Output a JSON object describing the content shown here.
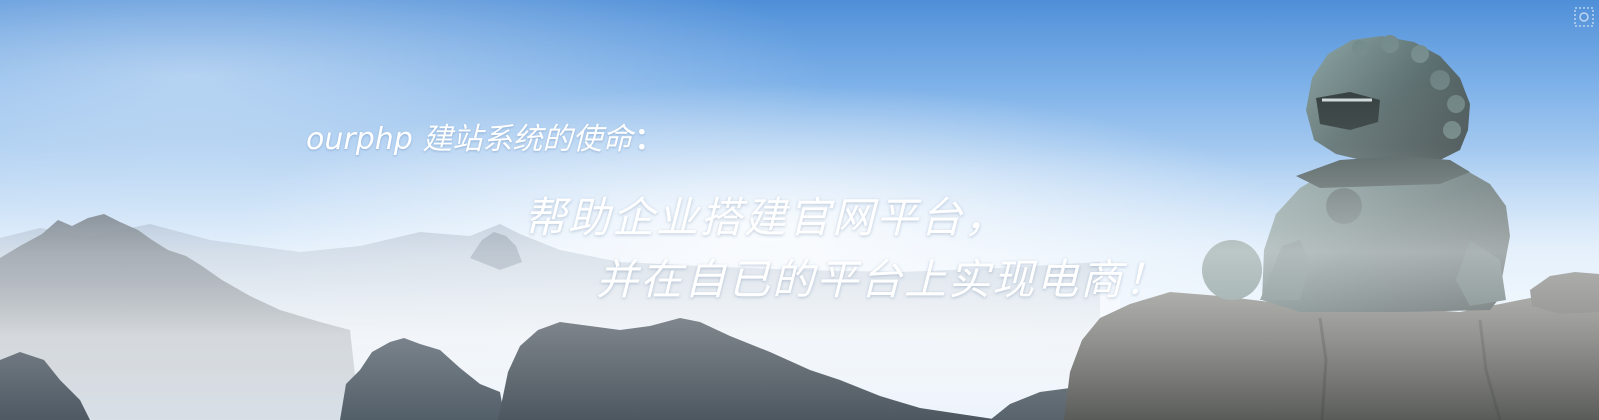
{
  "banner": {
    "tagline": "ourphp 建站系统的使命",
    "tagline_colon": "：",
    "headline_line1": "帮助企业搭建官网平台，",
    "headline_line2": "并在自已的平台上实现电商！"
  },
  "colors": {
    "sky_top": "#4f8fd8",
    "sky_bottom": "#e9f3fd",
    "text": "#ffffff",
    "mountain": "#2c3c4c",
    "statue": "#4a5a5c"
  },
  "icons": {
    "corner": "decorative-pattern-icon"
  }
}
